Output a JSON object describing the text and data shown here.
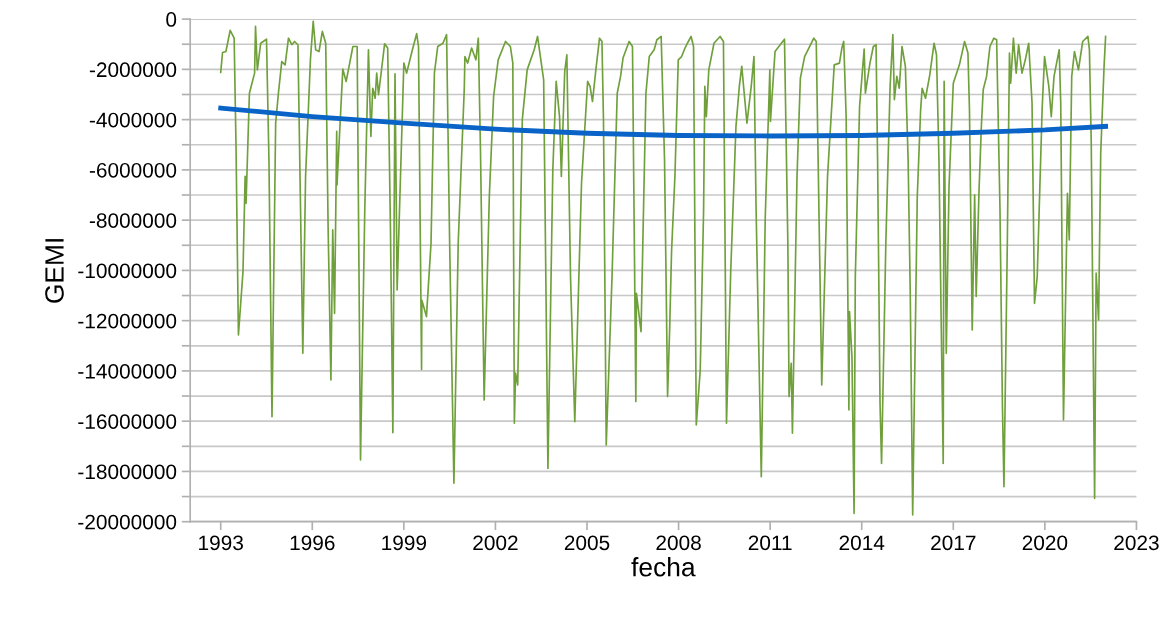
{
  "chart_data": {
    "type": "line",
    "xlabel": "fecha",
    "ylabel": "GEMI",
    "xlim": [
      1992,
      2023
    ],
    "xticks": [
      1993,
      1996,
      1999,
      2002,
      2005,
      2008,
      2011,
      2014,
      2017,
      2020,
      2023
    ],
    "ylim": [
      -20000000,
      0
    ],
    "yticks": [
      0,
      {
        "value": -1000000,
        "label": null
      },
      -2000000,
      {
        "value": -3000000,
        "label": null
      },
      -4000000,
      {
        "value": -5000000,
        "label": null
      },
      -6000000,
      {
        "value": -7000000,
        "label": null
      },
      -8000000,
      {
        "value": -9000000,
        "label": null
      },
      -10000000,
      {
        "value": -11000000,
        "label": null
      },
      -12000000,
      {
        "value": -13000000,
        "label": null
      },
      -14000000,
      {
        "value": -15000000,
        "label": null
      },
      -16000000,
      {
        "value": -17000000,
        "label": null
      },
      -18000000,
      {
        "value": -19000000,
        "label": null
      },
      -20000000
    ],
    "grid": "y",
    "marker": "none",
    "line_style": "solid",
    "series": [
      {
        "color": "#70a03c",
        "x": [
          1993.0,
          1993.06,
          1993.17,
          1993.31,
          1993.44,
          1993.5,
          1993.58,
          1993.73,
          1993.8,
          1993.83,
          1993.94,
          1994.11,
          1994.14,
          1994.2,
          1994.31,
          1994.5,
          1994.58,
          1994.68,
          1994.8,
          1994.89,
          1995.0,
          1995.11,
          1995.22,
          1995.33,
          1995.42,
          1995.53,
          1995.69,
          1995.78,
          1995.94,
          1996.03,
          1996.11,
          1996.22,
          1996.33,
          1996.44,
          1996.52,
          1996.61,
          1996.67,
          1996.73,
          1996.8,
          1996.81,
          1997.0,
          1997.11,
          1997.33,
          1997.47,
          1997.58,
          1997.72,
          1997.84,
          1997.92,
          1997.98,
          1998.06,
          1998.11,
          1998.17,
          1998.37,
          1998.47,
          1998.56,
          1998.64,
          1998.71,
          1998.78,
          1999.0,
          1999.09,
          1999.28,
          1999.42,
          1999.48,
          1999.58,
          1999.59,
          1999.74,
          1999.89,
          2000.0,
          2000.11,
          2000.28,
          2000.4,
          2000.5,
          2000.64,
          2000.78,
          2000.98,
          2001.0,
          2001.09,
          2001.22,
          2001.36,
          2001.44,
          2001.51,
          2001.63,
          2001.8,
          2001.94,
          2002.09,
          2002.33,
          2002.49,
          2002.57,
          2002.62,
          2002.66,
          2002.73,
          2002.88,
          2003.04,
          2003.27,
          2003.38,
          2003.58,
          2003.72,
          2003.88,
          2003.99,
          2004.1,
          2004.16,
          2004.27,
          2004.34,
          2004.46,
          2004.6,
          2004.82,
          2005.02,
          2005.1,
          2005.18,
          2005.29,
          2005.41,
          2005.49,
          2005.54,
          2005.63,
          2005.82,
          2005.99,
          2006.1,
          2006.18,
          2006.38,
          2006.49,
          2006.6,
          2006.62,
          2006.77,
          2006.82,
          2006.93,
          2007.04,
          2007.2,
          2007.29,
          2007.43,
          2007.54,
          2007.64,
          2007.71,
          2007.77,
          2007.88,
          2007.99,
          2008.1,
          2008.21,
          2008.32,
          2008.41,
          2008.49,
          2008.58,
          2008.71,
          2008.82,
          2008.86,
          2008.91,
          2008.99,
          2009.16,
          2009.36,
          2009.47,
          2009.57,
          2009.71,
          2009.88,
          2009.99,
          2010.07,
          2010.16,
          2010.24,
          2010.38,
          2010.47,
          2010.54,
          2010.71,
          2010.84,
          2010.99,
          2011.01,
          2011.16,
          2011.47,
          2011.58,
          2011.62,
          2011.69,
          2011.73,
          2011.88,
          2011.99,
          2012.13,
          2012.43,
          2012.51,
          2012.69,
          2012.88,
          2013.1,
          2013.27,
          2013.35,
          2013.41,
          2013.49,
          2013.58,
          2013.6,
          2013.68,
          2013.75,
          2013.79,
          2013.93,
          2014.08,
          2014.12,
          2014.27,
          2014.38,
          2014.47,
          2014.52,
          2014.6,
          2014.65,
          2014.79,
          2014.93,
          2015.02,
          2015.07,
          2015.15,
          2015.23,
          2015.32,
          2015.43,
          2015.52,
          2015.59,
          2015.67,
          2015.82,
          2015.93,
          2015.98,
          2016.09,
          2016.23,
          2016.37,
          2016.45,
          2016.53,
          2016.62,
          2016.67,
          2016.7,
          2016.77,
          2016.86,
          2017.0,
          2017.2,
          2017.37,
          2017.48,
          2017.53,
          2017.62,
          2017.7,
          2017.75,
          2017.84,
          2017.92,
          2017.98,
          2018.09,
          2018.2,
          2018.33,
          2018.42,
          2018.53,
          2018.61,
          2018.66,
          2018.77,
          2018.84,
          2018.88,
          2018.97,
          2019.06,
          2019.14,
          2019.25,
          2019.36,
          2019.47,
          2019.58,
          2019.66,
          2019.75,
          2019.91,
          2019.99,
          2020.13,
          2020.21,
          2020.3,
          2020.47,
          2020.52,
          2020.61,
          2020.74,
          2020.8,
          2020.88,
          2020.97,
          2021.1,
          2021.24,
          2021.41,
          2021.46,
          2021.52,
          2021.63,
          2021.68,
          2021.76,
          2021.83,
          2021.94,
          2021.99
        ],
        "values": [
          -2120000.0,
          -1330000.0,
          -1290000.0,
          -450000.0,
          -760000.0,
          -4940000.0,
          -12570000.0,
          -10050000.0,
          -6260000.0,
          -7330000.0,
          -2950000.0,
          -2150000.0,
          -290000.0,
          -2020000.0,
          -960000.0,
          -800000.0,
          -5600000.0,
          -15820000.0,
          -4140000.0,
          -2950000.0,
          -1690000.0,
          -1820000.0,
          -760000.0,
          -1020000.0,
          -890000.0,
          -1020000.0,
          -13300000.0,
          -6260000.0,
          -1590000.0,
          -90000.0,
          -1220000.0,
          -1290000.0,
          -490000.0,
          -960000.0,
          -8390000.0,
          -14360000.0,
          -8390000.0,
          -11710000.0,
          -4470000.0,
          -6600000.0,
          -1990000.0,
          -2480000.0,
          -1090000.0,
          -1090000.0,
          -17540000.0,
          -7590000.0,
          -1220000.0,
          -4670000.0,
          -2750000.0,
          -3150000.0,
          -2150000.0,
          -3010000.0,
          -980000.0,
          -1150000.0,
          -8260000.0,
          -16460000.0,
          -2180000.0,
          -10780000.0,
          -1750000.0,
          -2150000.0,
          -1220000.0,
          -580000.0,
          -1090000.0,
          -13940000.0,
          -11190000.0,
          -11840000.0,
          -8920000.0,
          -2150000.0,
          -1090000.0,
          -960000.0,
          -620000.0,
          -8920000.0,
          -18470000.0,
          -8920000.0,
          -2750000.0,
          -1490000.0,
          -1750000.0,
          -1150000.0,
          -1620000.0,
          -760000.0,
          -5200000.0,
          -15160000.0,
          -7060000.0,
          -3080000.0,
          -1620000.0,
          -890000.0,
          -1090000.0,
          -1750000.0,
          -16080000.0,
          -14090000.0,
          -14560000.0,
          -4010000.0,
          -2020000.0,
          -1220000.0,
          -690000.0,
          -2420000.0,
          -17880000.0,
          -6000000.0,
          -2480000.0,
          -3880000.0,
          -6260000.0,
          -2080000.0,
          -1420000.0,
          -10250000.0,
          -16020000.0,
          -6530000.0,
          -2480000.0,
          -2680000.0,
          -3280000.0,
          -2020000.0,
          -760000.0,
          -890000.0,
          -4010000.0,
          -16950000.0,
          -10250000.0,
          -2950000.0,
          -2280000.0,
          -1550000.0,
          -890000.0,
          -1090000.0,
          -15220000.0,
          -10910000.0,
          -12440000.0,
          -9450000.0,
          -2950000.0,
          -1490000.0,
          -1220000.0,
          -820000.0,
          -690000.0,
          -5600000.0,
          -15020000.0,
          -12240000.0,
          -9250000.0,
          -6260000.0,
          -1620000.0,
          -1490000.0,
          -1150000.0,
          -890000.0,
          -690000.0,
          -1090000.0,
          -16150000.0,
          -13960000.0,
          -7590000.0,
          -2680000.0,
          -3880000.0,
          -2020000.0,
          -960000.0,
          -690000.0,
          -890000.0,
          -16080000.0,
          -9980000.0,
          -4270000.0,
          -2680000.0,
          -1880000.0,
          -3080000.0,
          -4140000.0,
          -2680000.0,
          -1490000.0,
          -7590000.0,
          -18210000.0,
          -7860000.0,
          -2020000.0,
          -4070000.0,
          -1290000.0,
          -800000.0,
          -8920000.0,
          -15020000.0,
          -13700000.0,
          -16480000.0,
          -6260000.0,
          -2350000.0,
          -1490000.0,
          -760000.0,
          -890000.0,
          -14560000.0,
          -6260000.0,
          -1820000.0,
          -1750000.0,
          -1150000.0,
          -890000.0,
          -3880000.0,
          -15550000.0,
          -11640000.0,
          -13430000.0,
          -19670000.0,
          -10250000.0,
          -3480000.0,
          -1190000.0,
          -2950000.0,
          -1750000.0,
          -1090000.0,
          -1020000.0,
          -5600000.0,
          -15290000.0,
          -17680000.0,
          -8920000.0,
          -2680000.0,
          -620000.0,
          -3210000.0,
          -2280000.0,
          -2750000.0,
          -1090000.0,
          -1880000.0,
          -5600000.0,
          -10910000.0,
          -19730000.0,
          -7060000.0,
          -3610000.0,
          -2750000.0,
          -3150000.0,
          -2220000.0,
          -960000.0,
          -1420000.0,
          -5600000.0,
          -13430000.0,
          -17680000.0,
          -2480000.0,
          -13300000.0,
          -6660000.0,
          -2550000.0,
          -1820000.0,
          -890000.0,
          -1350000.0,
          -3610000.0,
          -12370000.0,
          -6990000.0,
          -11040000.0,
          -6930000.0,
          -4270000.0,
          -2810000.0,
          -2280000.0,
          -1090000.0,
          -760000.0,
          -820000.0,
          -7590000.0,
          -15420000.0,
          -18610000.0,
          -8920000.0,
          -1350000.0,
          -2550000.0,
          -760000.0,
          -2150000.0,
          -1020000.0,
          -2150000.0,
          -1620000.0,
          -960000.0,
          -3340000.0,
          -11310000.0,
          -10250000.0,
          -3610000.0,
          -1490000.0,
          -2680000.0,
          -3880000.0,
          -2280000.0,
          -1220000.0,
          -3340000.0,
          -15950000.0,
          -6930000.0,
          -8790000.0,
          -2280000.0,
          -1290000.0,
          -2020000.0,
          -890000.0,
          -690000.0,
          -1220000.0,
          -4940000.0,
          -19070000.0,
          -10110000.0,
          -11970000.0,
          -5340000.0,
          -1880000.0,
          -690000.0
        ]
      },
      {
        "color": "#0a64c8",
        "x": [
          1993,
          1996,
          1999,
          2002,
          2005,
          2008,
          2011,
          2014,
          2017,
          2020,
          2021.99
        ],
        "values": [
          -3540000.0,
          -3880000.0,
          -4140000.0,
          -4380000.0,
          -4540000.0,
          -4630000.0,
          -4650000.0,
          -4630000.0,
          -4540000.0,
          -4410000.0,
          -4270000.0
        ]
      }
    ]
  }
}
